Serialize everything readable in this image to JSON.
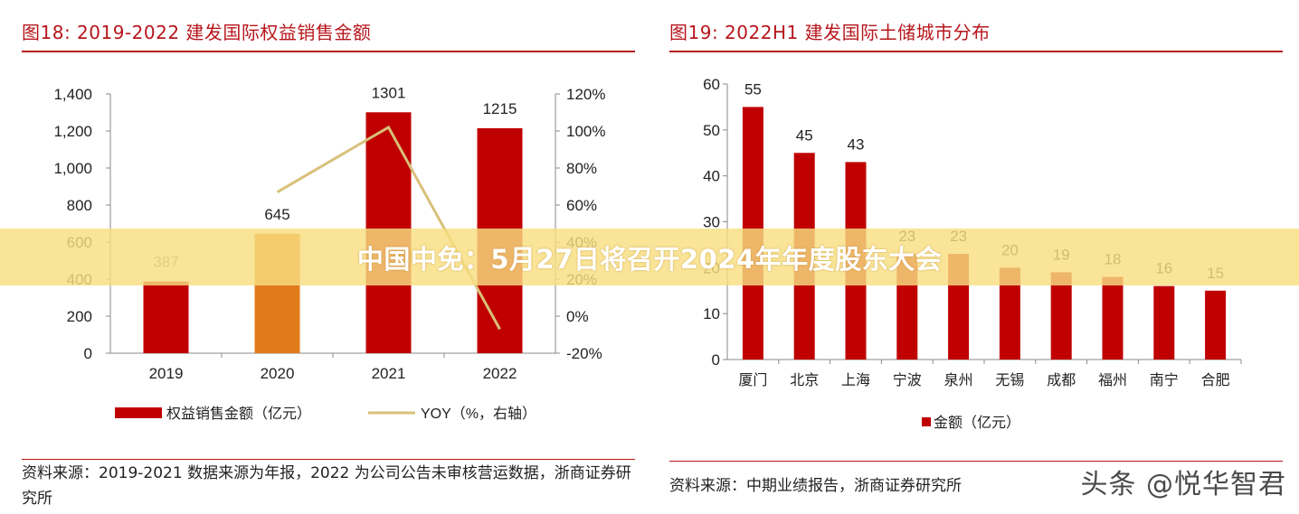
{
  "banner": {
    "headline": "中国中免：5月27日将召开2024年年度股东大会"
  },
  "watermark": {
    "text": "头条 @悦华智君"
  },
  "colors": {
    "bar": "#c00000",
    "bar_alt": "#e07b1b",
    "line": "#d9c07a",
    "accent": "#b7161c"
  },
  "chart_data": [
    {
      "type": "bar",
      "title": "图18:  2019-2022 建发国际权益销售金额",
      "categories": [
        "2019",
        "2020",
        "2021",
        "2022"
      ],
      "series": [
        {
          "name": "权益销售金额（亿元）",
          "type": "bar",
          "values": [
            387,
            645,
            1301,
            1215
          ],
          "labels": [
            "387",
            "645",
            "1301",
            "1215"
          ]
        },
        {
          "name": "YOY（%，右轴）",
          "type": "line",
          "axis": "right",
          "x": [
            "2020",
            "2021",
            "2022"
          ],
          "values": [
            67,
            102,
            -7
          ]
        }
      ],
      "ylim": [
        0,
        1400
      ],
      "yticks": [
        "0",
        "200",
        "400",
        "600",
        "800",
        "1,000",
        "1,200",
        "1,400"
      ],
      "y2lim": [
        -20,
        120
      ],
      "y2ticks": [
        "-20%",
        "0%",
        "20%",
        "40%",
        "60%",
        "80%",
        "100%",
        "120%"
      ],
      "legend": [
        "权益销售金额（亿元）",
        "YOY（%，右轴）"
      ],
      "source": "资料来源：2019-2021 数据来源为年报，2022 为公司公告未审核营运数据，浙商证券研究所"
    },
    {
      "type": "bar",
      "title": "图19:  2022H1 建发国际土储城市分布",
      "categories": [
        "厦门",
        "北京",
        "上海",
        "宁波",
        "泉州",
        "无锡",
        "成都",
        "福州",
        "南宁",
        "合肥"
      ],
      "series": [
        {
          "name": "金额（亿元）",
          "values": [
            55,
            45,
            43,
            23,
            23,
            20,
            19,
            18,
            16,
            15
          ]
        }
      ],
      "ylim": [
        0,
        60
      ],
      "yticks": [
        "0",
        "10",
        "20",
        "30",
        "40",
        "50",
        "60"
      ],
      "legend": [
        "金额（亿元）"
      ],
      "source": "资料来源：中期业绩报告，浙商证券研究所"
    }
  ]
}
